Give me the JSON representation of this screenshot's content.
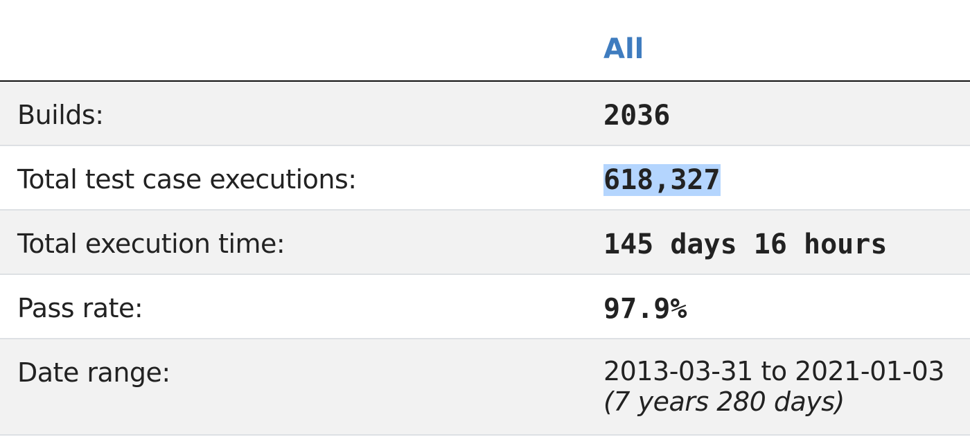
{
  "table": {
    "header": "All",
    "rows": [
      {
        "label": "Builds:",
        "value": "2036"
      },
      {
        "label": "Total test case executions:",
        "value": "618,327"
      },
      {
        "label": "Total execution time:",
        "value": "145 days 16 hours"
      },
      {
        "label": "Pass rate:",
        "value": "97.9%"
      },
      {
        "label": "Date range:",
        "value": "2013-03-31 to 2021-01-03",
        "note": "(7 years 280 days)"
      }
    ]
  }
}
